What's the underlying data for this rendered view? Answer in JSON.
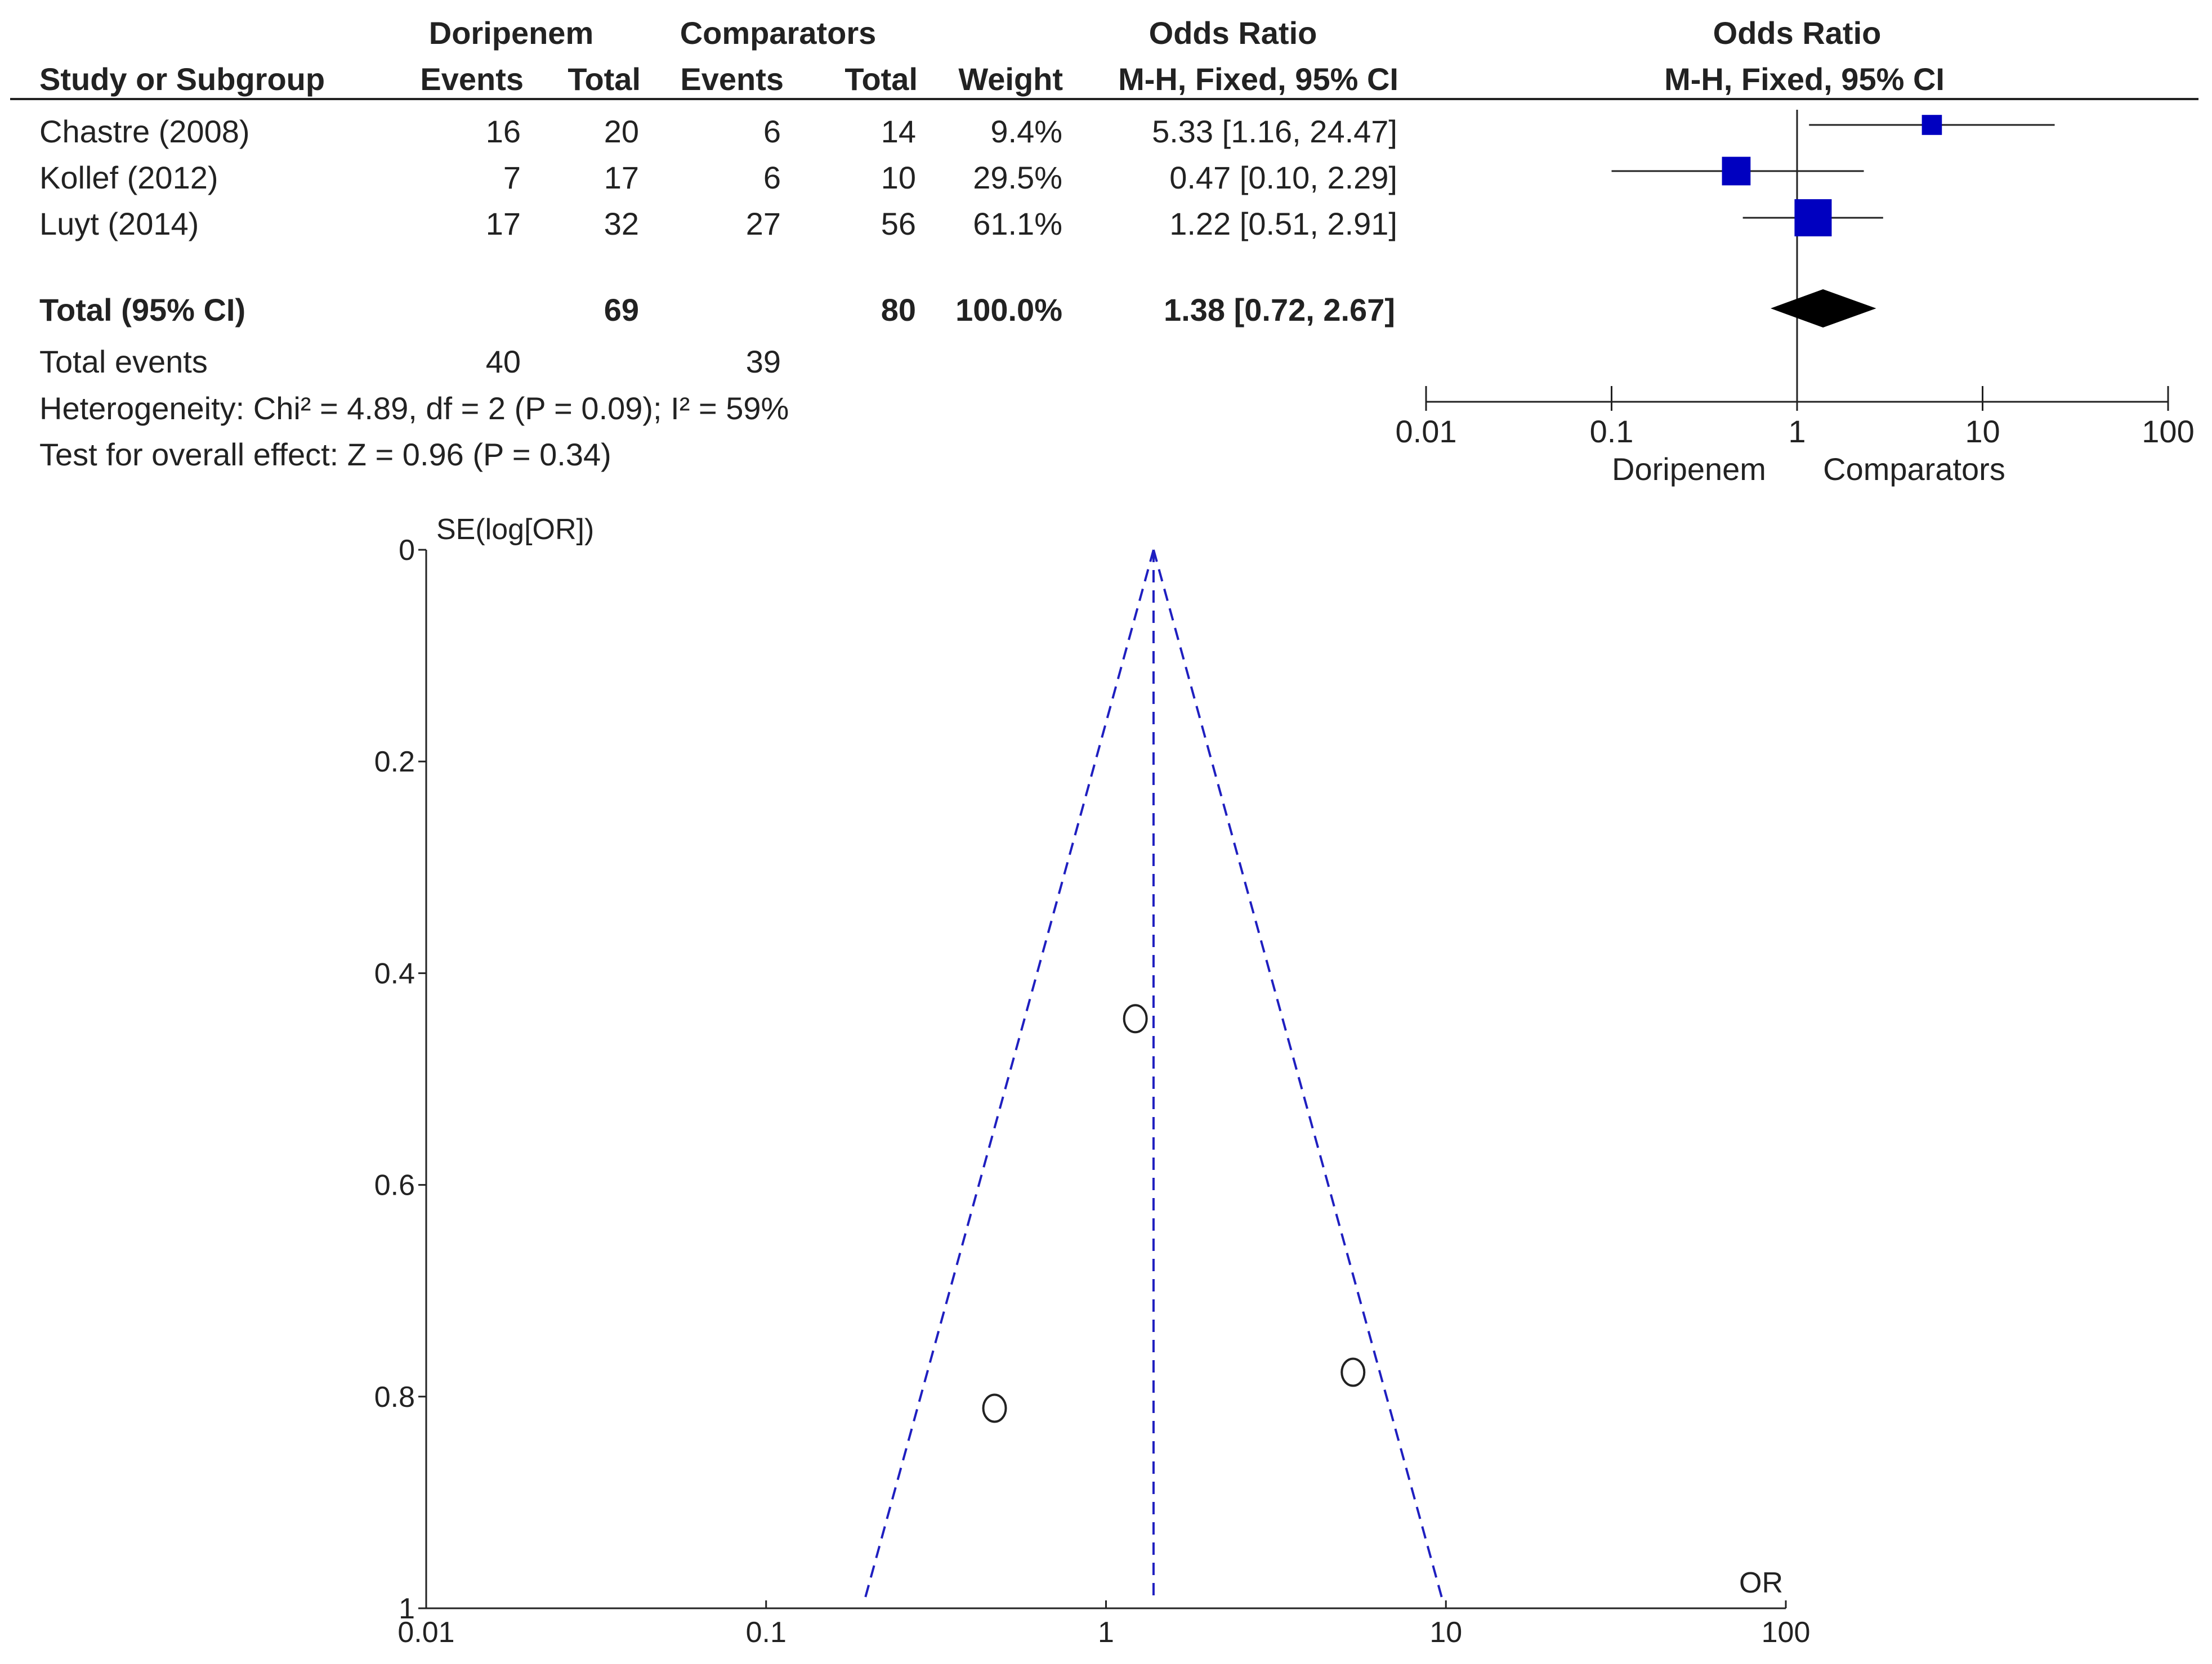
{
  "forest": {
    "headers": {
      "group1": "Doripenem",
      "group2": "Comparators",
      "or_col": "Odds Ratio",
      "or_col_sub": "M-H, Fixed, 95% CI",
      "plot_title": "Odds Ratio",
      "plot_sub": "M-H, Fixed, 95% CI",
      "study": "Study or Subgroup",
      "events1": "Events",
      "total1": "Total",
      "events2": "Events",
      "total2": "Total",
      "weight": "Weight"
    },
    "studies": [
      {
        "name": "Chastre (2008)",
        "events1": "16",
        "total1": "20",
        "events2": "6",
        "total2": "14",
        "weight": "9.4%",
        "ci_text": "5.33 [1.16, 24.47]"
      },
      {
        "name": "Kollef (2012)",
        "events1": "7",
        "total1": "17",
        "events2": "6",
        "total2": "10",
        "weight": "29.5%",
        "ci_text": "0.47 [0.10, 2.29]"
      },
      {
        "name": "Luyt (2014)",
        "events1": "17",
        "total1": "32",
        "events2": "27",
        "total2": "56",
        "weight": "61.1%",
        "ci_text": "1.22 [0.51, 2.91]"
      }
    ],
    "total": {
      "label": "Total (95% CI)",
      "total1": "69",
      "total2": "80",
      "weight": "100.0%",
      "ci_text": "1.38 [0.72, 2.67]"
    },
    "total_events": {
      "label": "Total events",
      "events1": "40",
      "events2": "39"
    },
    "heterogeneity": "Heterogeneity: Chi² = 4.89, df = 2 (P = 0.09); I² = 59%",
    "overall_effect": "Test for overall effect: Z = 0.96 (P = 0.34)",
    "axis_ticks": [
      "0.01",
      "0.1",
      "1",
      "10",
      "100"
    ],
    "favours_left": "Doripenem",
    "favours_right": "Comparators"
  },
  "funnel": {
    "ylabel": "SE(log[OR])",
    "xlabel": "OR",
    "y_ticks": [
      "0",
      "0.2",
      "0.4",
      "0.6",
      "0.8",
      "1"
    ],
    "x_ticks": [
      "0.01",
      "0.1",
      "1",
      "10",
      "100"
    ]
  },
  "colors": {
    "square": "#0000c0",
    "diamond": "#000000",
    "funnel_line": "#1f1fc0",
    "text": "#222222"
  },
  "chart_data": [
    {
      "type": "scatter",
      "subtype": "forest",
      "title": "Odds Ratio",
      "subtitle": "M-H, Fixed, 95% CI",
      "x_scale": "log",
      "xlim": [
        0.01,
        100
      ],
      "studies": [
        {
          "name": "Chastre (2008)",
          "or": 5.33,
          "ci": [
            1.16,
            24.47
          ],
          "weight": 9.4
        },
        {
          "name": "Kollef (2012)",
          "or": 0.47,
          "ci": [
            0.1,
            2.29
          ],
          "weight": 29.5
        },
        {
          "name": "Luyt (2014)",
          "or": 1.22,
          "ci": [
            0.51,
            2.91
          ],
          "weight": 61.1
        }
      ],
      "pooled": {
        "or": 1.38,
        "ci": [
          0.72,
          2.67
        ]
      }
    },
    {
      "type": "scatter",
      "subtype": "funnel",
      "xlabel": "OR",
      "ylabel": "SE(log[OR])",
      "x_scale": "log",
      "xlim": [
        0.01,
        100
      ],
      "ylim": [
        0,
        1
      ],
      "y_reversed": true,
      "pooled_or": 1.38,
      "points": [
        {
          "or": 5.33,
          "se": 0.777
        },
        {
          "or": 0.47,
          "se": 0.811
        },
        {
          "or": 1.22,
          "se": 0.443
        }
      ]
    }
  ]
}
